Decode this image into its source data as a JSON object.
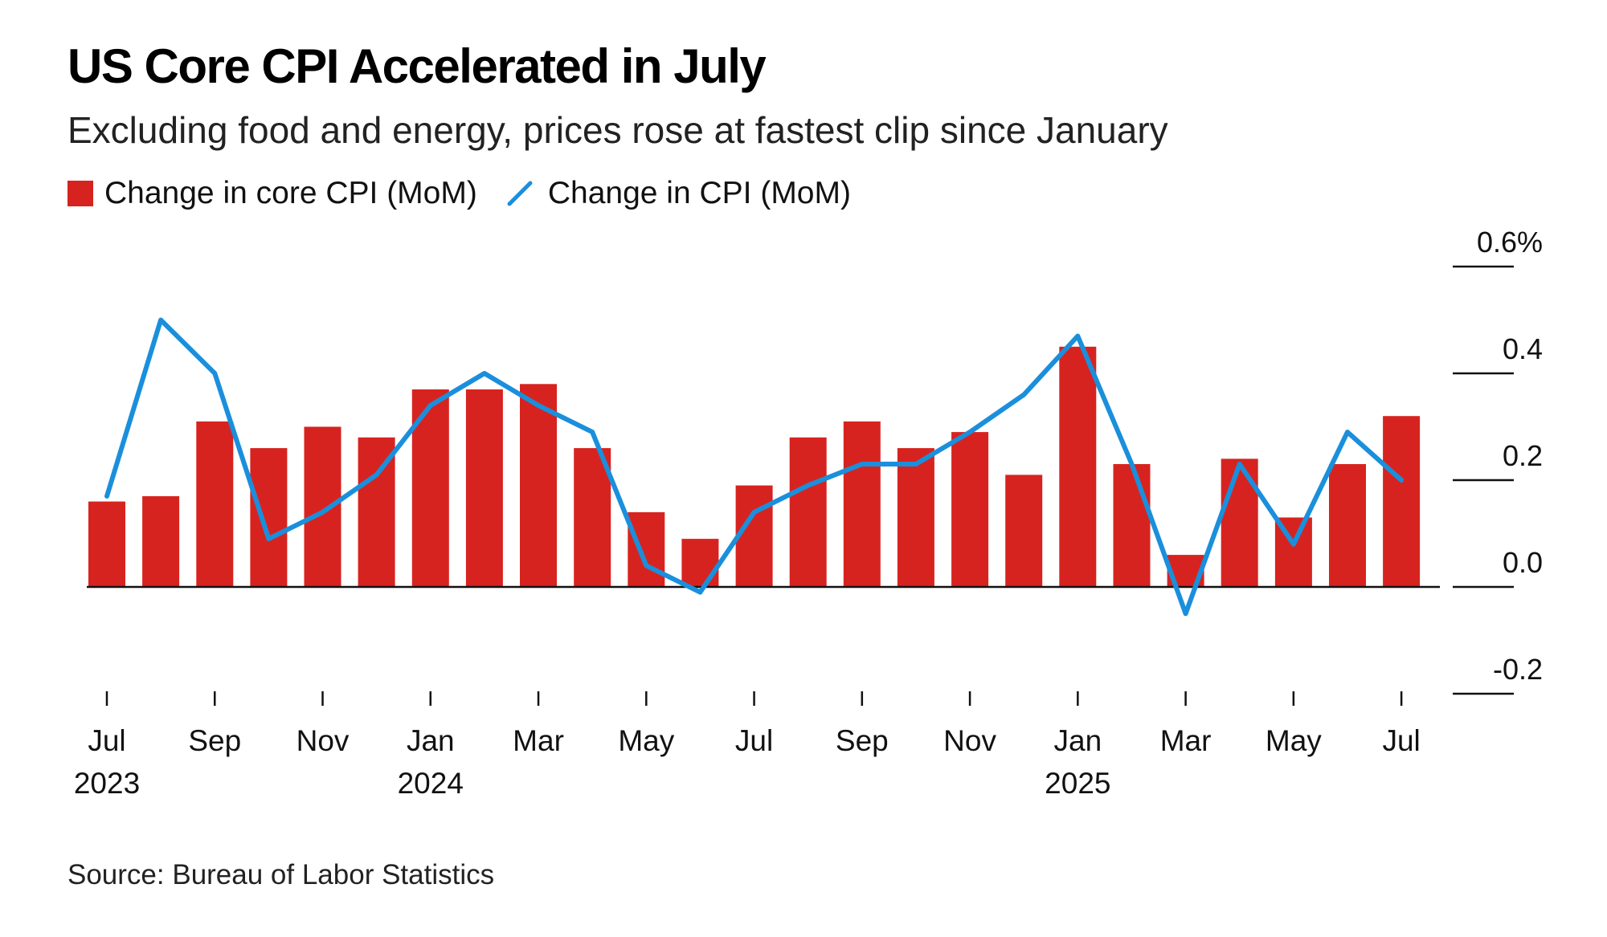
{
  "title": "US Core CPI Accelerated in July",
  "subtitle": "Excluding food and energy, prices rose at fastest clip since January",
  "source": "Source: Bureau of Labor Statistics",
  "colors": {
    "bar": "#d7231f",
    "line": "#1a8fdc",
    "axis": "#111111",
    "text": "#111111"
  },
  "legend": [
    {
      "name": "Change in core CPI (MoM)",
      "icon": "red-square-icon",
      "color": "#d7231f"
    },
    {
      "name": "Change in CPI (MoM)",
      "icon": "blue-line-icon",
      "color": "#1a8fdc"
    }
  ],
  "chart_data": {
    "type": "bar",
    "title": "US Core CPI Accelerated in July",
    "subtitle": "Excluding food and energy, prices rose at fastest clip since January",
    "x": [
      "2023-07",
      "2023-08",
      "2023-09",
      "2023-10",
      "2023-11",
      "2023-12",
      "2024-01",
      "2024-02",
      "2024-03",
      "2024-04",
      "2024-05",
      "2024-06",
      "2024-07",
      "2024-08",
      "2024-09",
      "2024-10",
      "2024-11",
      "2024-12",
      "2025-01",
      "2025-02",
      "2025-03",
      "2025-04",
      "2025-05",
      "2025-06",
      "2025-07"
    ],
    "series": [
      {
        "name": "Change in core CPI (MoM)",
        "type": "bar",
        "color": "#d7231f",
        "values": [
          0.16,
          0.17,
          0.31,
          0.26,
          0.3,
          0.28,
          0.37,
          0.37,
          0.38,
          0.26,
          0.14,
          0.09,
          0.19,
          0.28,
          0.31,
          0.26,
          0.29,
          0.21,
          0.45,
          0.23,
          0.06,
          0.24,
          0.13,
          0.23,
          0.32
        ]
      },
      {
        "name": "Change in CPI (MoM)",
        "type": "line",
        "color": "#1a8fdc",
        "values": [
          0.17,
          0.5,
          0.4,
          0.09,
          0.14,
          0.21,
          0.34,
          0.4,
          0.34,
          0.29,
          0.04,
          -0.01,
          0.14,
          0.19,
          0.23,
          0.23,
          0.29,
          0.36,
          0.47,
          0.23,
          -0.05,
          0.23,
          0.08,
          0.29,
          0.2
        ]
      }
    ],
    "y_axis": {
      "min": -0.2,
      "max": 0.6,
      "ticks": [
        0.6,
        0.4,
        0.2,
        0.0,
        -0.2
      ],
      "tick_labels": [
        "0.6%",
        "0.4",
        "0.2",
        "0.0",
        "-0.2"
      ],
      "position": "right"
    },
    "x_axis": {
      "tick_labels": [
        {
          "x": "2023-07",
          "month": "Jul",
          "year": "2023"
        },
        {
          "x": "2023-09",
          "month": "Sep",
          "year": ""
        },
        {
          "x": "2023-11",
          "month": "Nov",
          "year": ""
        },
        {
          "x": "2024-01",
          "month": "Jan",
          "year": "2024"
        },
        {
          "x": "2024-03",
          "month": "Mar",
          "year": ""
        },
        {
          "x": "2024-05",
          "month": "May",
          "year": ""
        },
        {
          "x": "2024-07",
          "month": "Jul",
          "year": ""
        },
        {
          "x": "2024-09",
          "month": "Sep",
          "year": ""
        },
        {
          "x": "2024-11",
          "month": "Nov",
          "year": ""
        },
        {
          "x": "2025-01",
          "month": "Jan",
          "year": "2025"
        },
        {
          "x": "2025-03",
          "month": "Mar",
          "year": ""
        },
        {
          "x": "2025-05",
          "month": "May",
          "year": ""
        },
        {
          "x": "2025-07",
          "month": "Jul",
          "year": ""
        }
      ]
    },
    "grid": false,
    "legend_position": "top-left"
  }
}
